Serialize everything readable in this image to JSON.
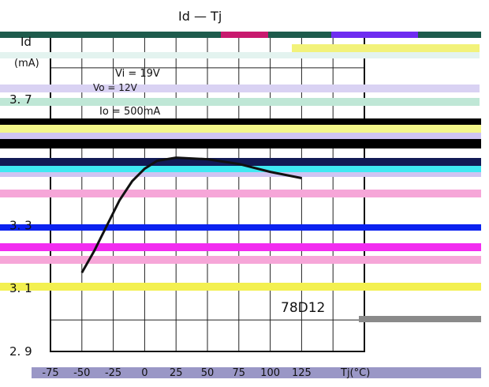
{
  "chart_data": {
    "type": "line",
    "title": "Id — Tj",
    "ylabel": "Id",
    "yunit": "(mA)",
    "xlabel": "Tj(°C)",
    "part_label": "78D12",
    "conditions": [
      "Vi = 19V",
      "Vo = 12V",
      "Io = 500mA"
    ],
    "y_ticks": [
      {
        "value": 3.7,
        "label": "3. 7"
      },
      {
        "value": 3.3,
        "label": "3. 3"
      },
      {
        "value": 3.1,
        "label": "3. 1"
      },
      {
        "value": 2.9,
        "label": "2. 9"
      }
    ],
    "x_ticks": [
      {
        "value": -75,
        "label": "-75"
      },
      {
        "value": -50,
        "label": "-50"
      },
      {
        "value": -25,
        "label": "-25"
      },
      {
        "value": 0,
        "label": "0"
      },
      {
        "value": 25,
        "label": "25"
      },
      {
        "value": 50,
        "label": "50"
      },
      {
        "value": 75,
        "label": "75"
      },
      {
        "value": 100,
        "label": "100"
      },
      {
        "value": 125,
        "label": "125"
      }
    ],
    "xlim": [
      -75,
      175
    ],
    "ylim": [
      2.9,
      3.9
    ],
    "grid": true,
    "series": [
      {
        "x": [
          -50,
          -40,
          -30,
          -20,
          -10,
          0,
          10,
          25,
          50,
          75,
          100,
          125
        ],
        "y": [
          3.15,
          3.22,
          3.3,
          3.38,
          3.44,
          3.48,
          3.505,
          3.515,
          3.51,
          3.495,
          3.47,
          3.45
        ]
      }
    ]
  }
}
